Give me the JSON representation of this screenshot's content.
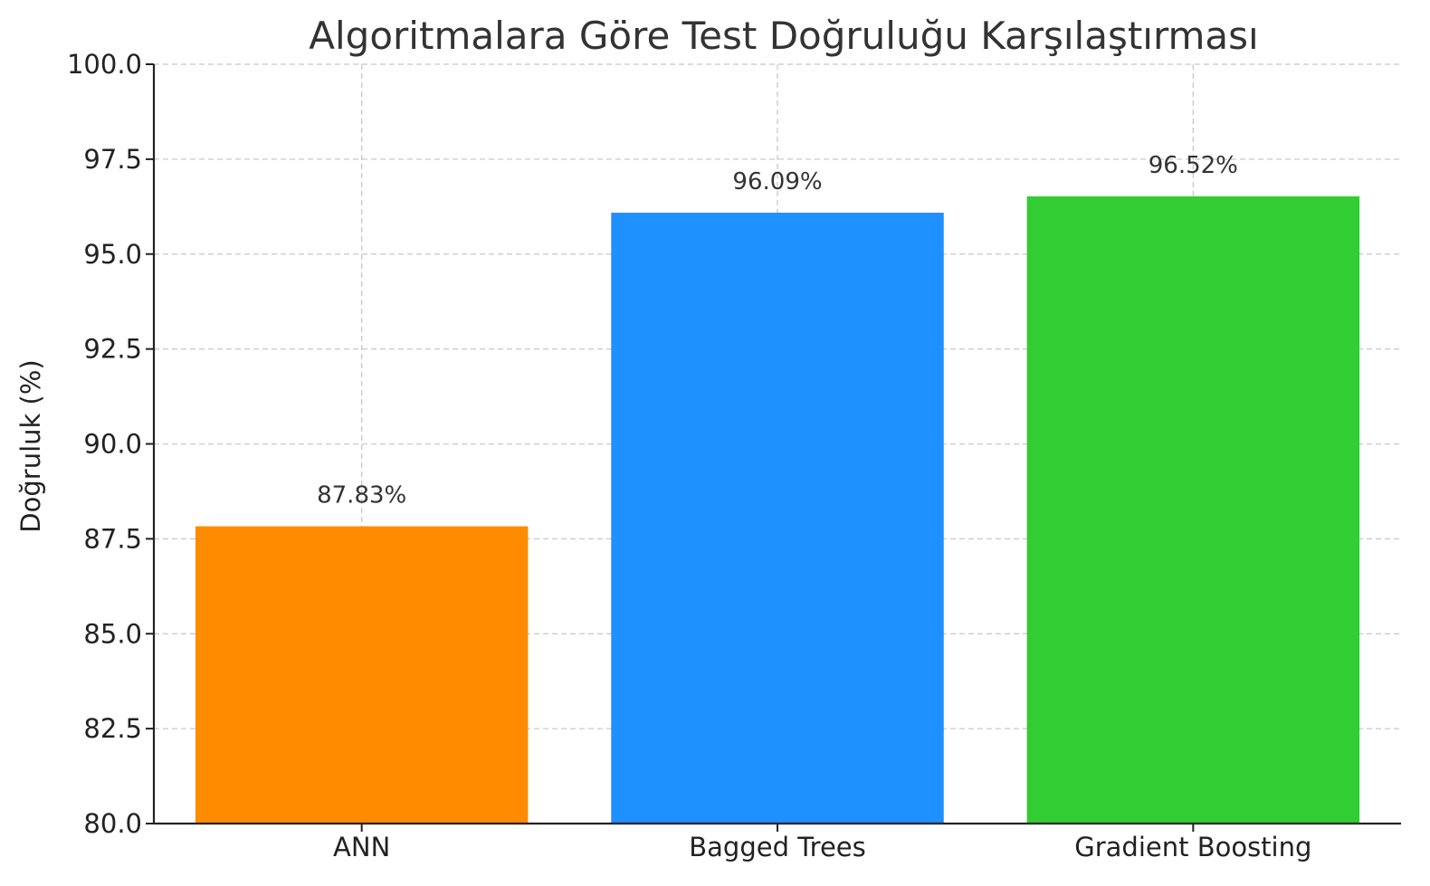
{
  "chart_data": {
    "type": "bar",
    "title": "Algoritmalara Göre Test Doğruluğu Karşılaştırması",
    "xlabel": "",
    "ylabel": "Doğruluk (%)",
    "categories": [
      "ANN",
      "Bagged Trees",
      "Gradient Boosting"
    ],
    "values": [
      87.83,
      96.09,
      96.52
    ],
    "data_labels": [
      "87.83%",
      "96.09%",
      "96.52%"
    ],
    "colors": [
      "#ff8c00",
      "#1e90ff",
      "#32cd32"
    ],
    "ylim": [
      80,
      100
    ],
    "yticks": [
      80.0,
      82.5,
      85.0,
      87.5,
      90.0,
      92.5,
      95.0,
      97.5,
      100.0
    ],
    "ytick_labels": [
      "80.0",
      "82.5",
      "85.0",
      "87.5",
      "90.0",
      "92.5",
      "95.0",
      "97.5",
      "100.0"
    ],
    "grid": true
  }
}
